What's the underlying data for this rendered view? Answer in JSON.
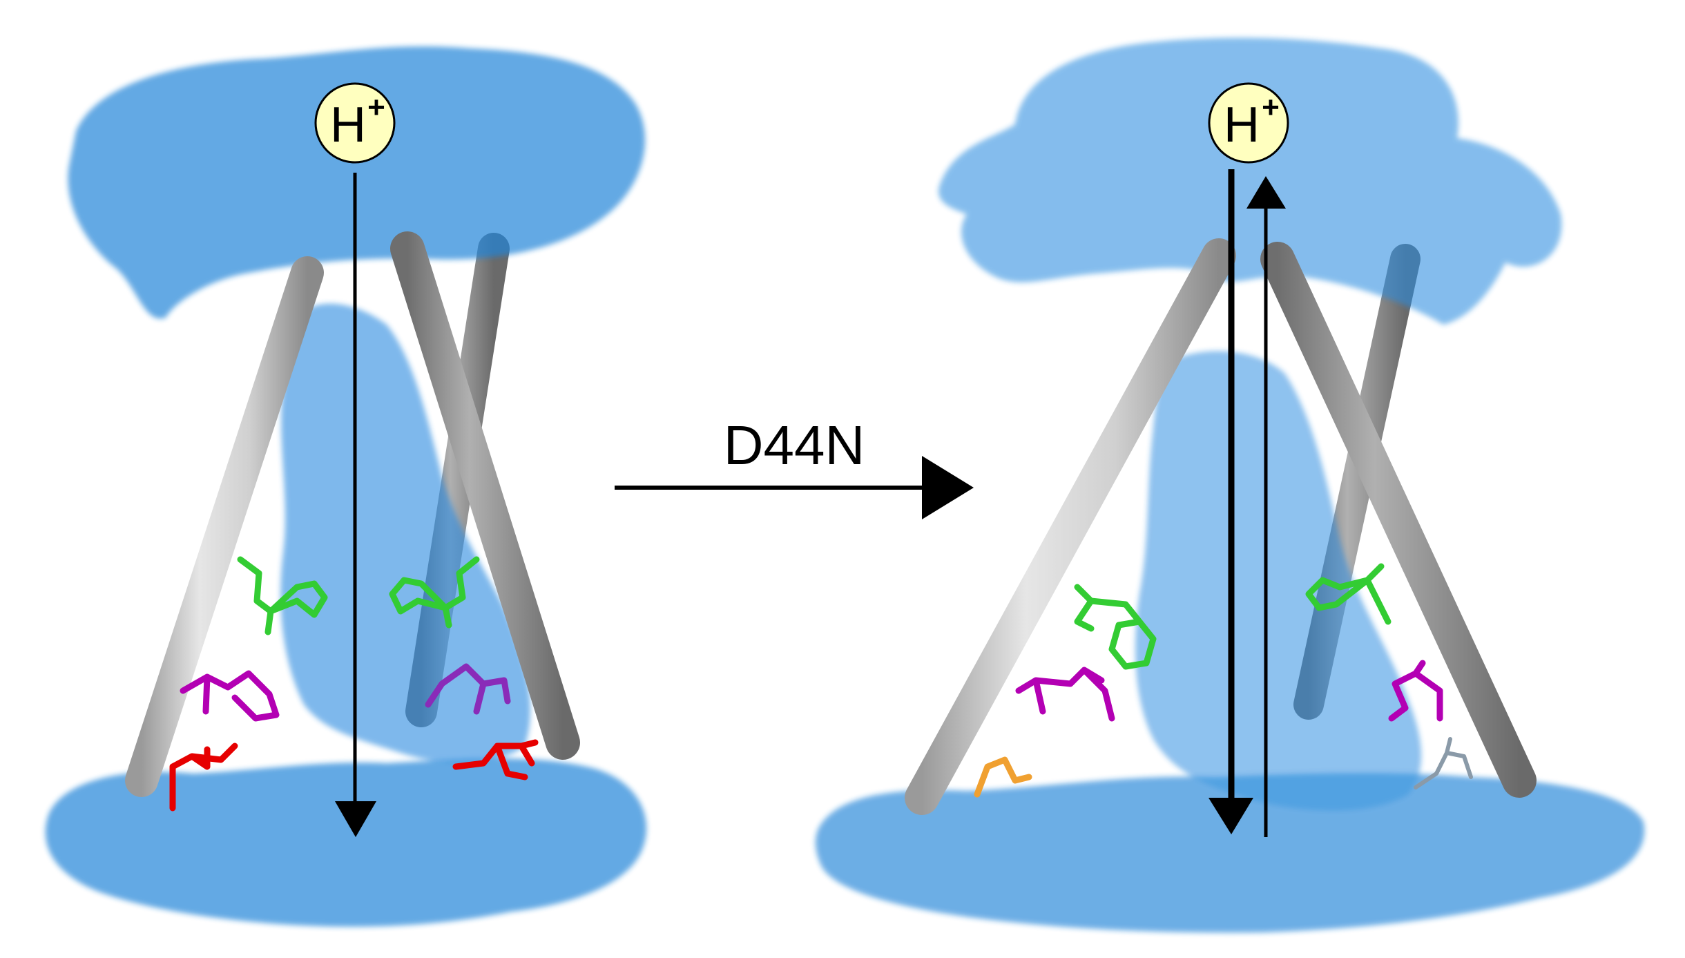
{
  "panels": {
    "left": {
      "ion_label": "H",
      "ion_charge": "+"
    },
    "right": {
      "ion_label": "H",
      "ion_charge": "+"
    }
  },
  "mutation": {
    "label": "D44N"
  },
  "colors": {
    "water": "#1a7fd4",
    "helix_light": "#c9c9c9",
    "helix_dark": "#8e8e8e",
    "ion_fill": "#ffffbf",
    "residue_green": "#33cc33",
    "residue_magenta": "#b300b3",
    "residue_red": "#e60000",
    "residue_orange": "#f0a030"
  }
}
